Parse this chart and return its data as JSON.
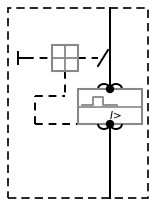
{
  "fig_width": 1.56,
  "fig_height": 2.06,
  "dpi": 100,
  "bg_color": "#ffffff",
  "line_color": "#000000",
  "gray_color": "#888888"
}
